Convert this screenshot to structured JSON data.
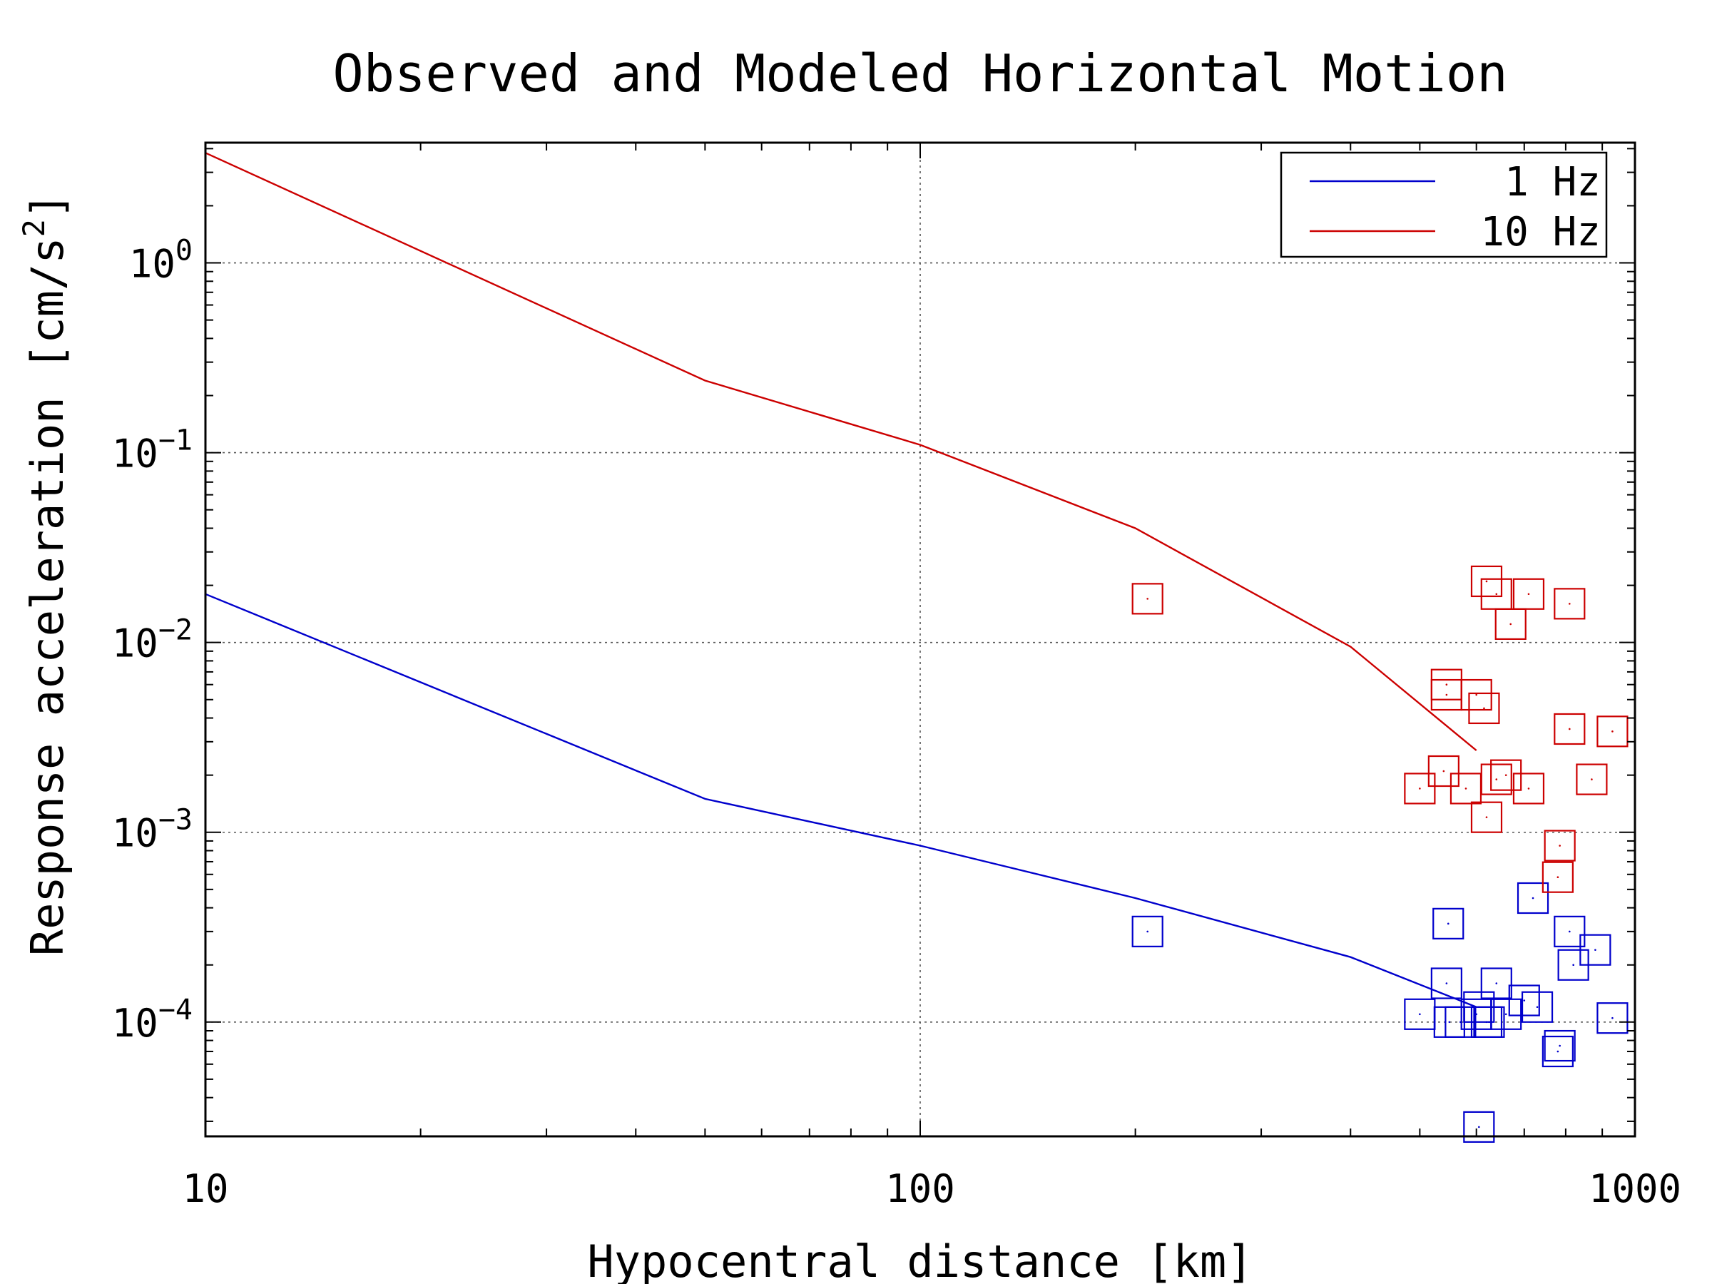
{
  "chart_data": {
    "type": "scatter",
    "title": "Observed and Modeled Horizontal Motion",
    "xlabel": "Hypocentral distance [km]",
    "ylabel": "Response acceleration [cm/s^2]",
    "ylabel_parts": {
      "main": "Response acceleration [cm/s",
      "sup": "2",
      "close": "]"
    },
    "x_scale": "log",
    "y_scale": "log",
    "xlim": [
      10,
      1000
    ],
    "ylim": [
      2.5e-05,
      4.3
    ],
    "x_ticks": [
      {
        "value": 10,
        "label": "10"
      },
      {
        "value": 100,
        "label": "100"
      },
      {
        "value": 1000,
        "label": "1000"
      }
    ],
    "y_ticks": [
      {
        "value": 1,
        "base": "10",
        "exp": "0"
      },
      {
        "value": 0.1,
        "base": "10",
        "exp": "−1"
      },
      {
        "value": 0.01,
        "base": "10",
        "exp": "−2"
      },
      {
        "value": 0.001,
        "base": "10",
        "exp": "−3"
      },
      {
        "value": 0.0001,
        "base": "10",
        "exp": "−4"
      }
    ],
    "grid": true,
    "legend_position": "top-right",
    "series": [
      {
        "name": "1 Hz",
        "color": "#0000cc",
        "model_line": [
          [
            10,
            0.018
          ],
          [
            50,
            0.0015
          ],
          [
            100,
            0.00085
          ],
          [
            200,
            0.00045
          ],
          [
            400,
            0.00022
          ],
          [
            600,
            0.00012
          ]
        ],
        "observed": [
          [
            208,
            0.0003
          ],
          [
            548,
            0.00033
          ],
          [
            720,
            0.00045
          ],
          [
            810,
            0.0003
          ],
          [
            880,
            0.00024
          ],
          [
            820,
            0.0002
          ],
          [
            545,
            0.00016
          ],
          [
            640,
            0.00016
          ],
          [
            700,
            0.00013
          ],
          [
            730,
            0.00012
          ],
          [
            605,
            0.00012
          ],
          [
            500,
            0.00011
          ],
          [
            550,
            0.0001
          ],
          [
            600,
            0.00011
          ],
          [
            570,
            0.0001
          ],
          [
            625,
            0.0001
          ],
          [
            620,
            0.0001
          ],
          [
            660,
            0.00011
          ],
          [
            780,
            7e-05
          ],
          [
            785,
            7.5e-05
          ],
          [
            930,
            0.000105
          ],
          [
            605,
            2.8e-05
          ]
        ]
      },
      {
        "name": "10 Hz",
        "color": "#cc0000",
        "model_line": [
          [
            10,
            3.8
          ],
          [
            50,
            0.24
          ],
          [
            100,
            0.11
          ],
          [
            200,
            0.04
          ],
          [
            400,
            0.0095
          ],
          [
            600,
            0.0027
          ]
        ],
        "observed": [
          [
            208,
            0.017
          ],
          [
            620,
            0.021
          ],
          [
            640,
            0.018
          ],
          [
            710,
            0.018
          ],
          [
            810,
            0.016
          ],
          [
            670,
            0.0125
          ],
          [
            545,
            0.006
          ],
          [
            545,
            0.0053
          ],
          [
            600,
            0.0053
          ],
          [
            615,
            0.0045
          ],
          [
            810,
            0.0035
          ],
          [
            930,
            0.0034
          ],
          [
            540,
            0.0021
          ],
          [
            640,
            0.0019
          ],
          [
            660,
            0.002
          ],
          [
            870,
            0.0019
          ],
          [
            500,
            0.0017
          ],
          [
            580,
            0.0017
          ],
          [
            710,
            0.0017
          ],
          [
            620,
            0.0012
          ],
          [
            785,
            0.00085
          ],
          [
            780,
            0.00058
          ]
        ]
      }
    ]
  }
}
